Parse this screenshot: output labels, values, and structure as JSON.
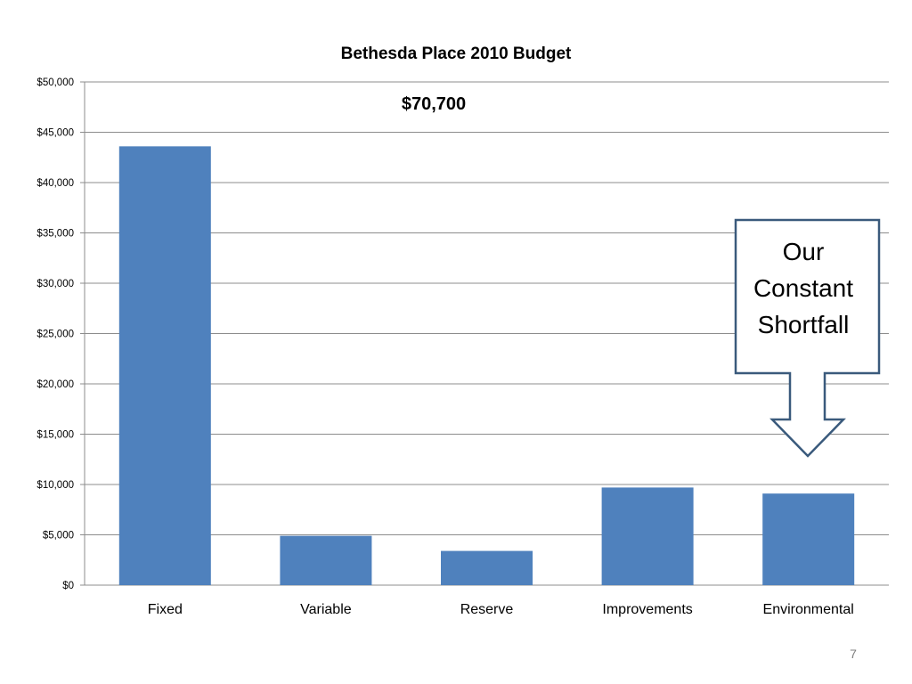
{
  "chart_data": {
    "type": "bar",
    "title": "Bethesda Place 2010 Budget",
    "categories": [
      "Fixed",
      "Variable",
      "Reserve",
      "Improvements",
      "Environmental"
    ],
    "values": [
      43600,
      4900,
      3400,
      9700,
      9100
    ],
    "ylim": [
      0,
      50000
    ],
    "yticks": [
      0,
      5000,
      10000,
      15000,
      20000,
      25000,
      30000,
      35000,
      40000,
      45000,
      50000
    ],
    "ytick_labels": [
      "$0",
      "$5,000",
      "$10,000",
      "$15,000",
      "$20,000",
      "$25,000",
      "$30,000",
      "$35,000",
      "$40,000",
      "$45,000",
      "$50,000"
    ],
    "xlabel": "",
    "ylabel": "",
    "grid": true,
    "legend": "none",
    "bar_color": "#4f81bd",
    "annotations": {
      "total": "$70,700",
      "callout_lines": [
        "Our",
        "Constant",
        "Shortfall"
      ],
      "callout_border_color": "#3a5a7c",
      "callout_points_to": "Environmental"
    }
  },
  "slide": {
    "page_number": "7"
  }
}
